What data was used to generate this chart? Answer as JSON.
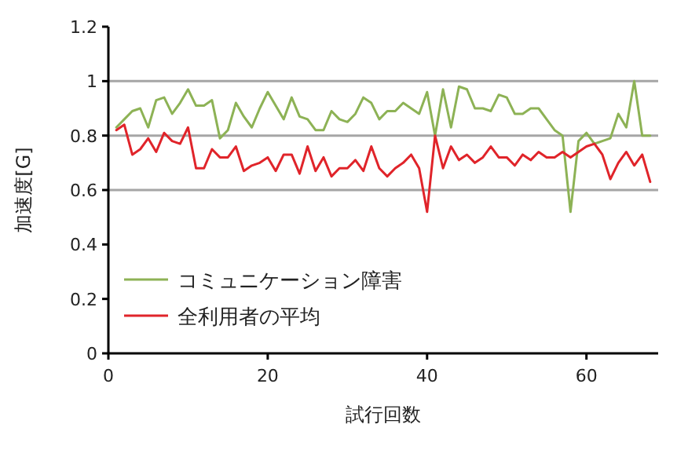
{
  "chart_data": {
    "type": "line",
    "xlabel": "試行回数",
    "ylabel": "加速度[G]",
    "x": [
      1,
      2,
      3,
      4,
      5,
      6,
      7,
      8,
      9,
      10,
      11,
      12,
      13,
      14,
      15,
      16,
      17,
      18,
      19,
      20,
      21,
      22,
      23,
      24,
      25,
      26,
      27,
      28,
      29,
      30,
      31,
      32,
      33,
      34,
      35,
      36,
      37,
      38,
      39,
      40,
      41,
      42,
      43,
      44,
      45,
      46,
      47,
      48,
      49,
      50,
      51,
      52,
      53,
      54,
      55,
      56,
      57,
      58,
      59,
      60,
      61,
      62,
      63,
      64,
      65,
      66,
      67,
      68
    ],
    "series": [
      {
        "name": "コミュニケーション障害",
        "color": "#8db255",
        "values": [
          0.83,
          0.86,
          0.89,
          0.9,
          0.83,
          0.93,
          0.94,
          0.88,
          0.92,
          0.97,
          0.91,
          0.91,
          0.93,
          0.79,
          0.82,
          0.92,
          0.87,
          0.83,
          0.9,
          0.96,
          0.91,
          0.86,
          0.94,
          0.87,
          0.86,
          0.82,
          0.82,
          0.89,
          0.86,
          0.85,
          0.88,
          0.94,
          0.92,
          0.86,
          0.89,
          0.89,
          0.92,
          0.9,
          0.88,
          0.96,
          0.8,
          0.97,
          0.83,
          0.98,
          0.97,
          0.9,
          0.9,
          0.89,
          0.95,
          0.94,
          0.88,
          0.88,
          0.9,
          0.9,
          0.86,
          0.82,
          0.8,
          0.52,
          0.78,
          0.81,
          0.77,
          0.78,
          0.79,
          0.88,
          0.83,
          1.0,
          0.8,
          0.8
        ]
      },
      {
        "name": "全利用者の平均",
        "color": "#e0242a",
        "values": [
          0.82,
          0.84,
          0.73,
          0.75,
          0.79,
          0.74,
          0.81,
          0.78,
          0.77,
          0.83,
          0.68,
          0.68,
          0.75,
          0.72,
          0.72,
          0.76,
          0.67,
          0.69,
          0.7,
          0.72,
          0.67,
          0.73,
          0.73,
          0.66,
          0.76,
          0.67,
          0.72,
          0.65,
          0.68,
          0.68,
          0.71,
          0.67,
          0.76,
          0.68,
          0.65,
          0.68,
          0.7,
          0.73,
          0.68,
          0.52,
          0.8,
          0.68,
          0.76,
          0.71,
          0.73,
          0.7,
          0.72,
          0.76,
          0.72,
          0.72,
          0.69,
          0.73,
          0.71,
          0.74,
          0.72,
          0.72,
          0.74,
          0.72,
          0.74,
          0.76,
          0.77,
          0.73,
          0.64,
          0.7,
          0.74,
          0.69,
          0.73,
          0.63
        ]
      }
    ],
    "xlim": [
      0,
      69
    ],
    "xticks": [
      0,
      20,
      40,
      60
    ],
    "ylim": [
      0,
      1.2
    ],
    "yticks": [
      0,
      0.2,
      0.4,
      0.6,
      0.8,
      1,
      1.2
    ],
    "ref_lines": [
      {
        "axis": "y",
        "value": 0.6,
        "color": "#a6a6a6"
      },
      {
        "axis": "y",
        "value": 0.8,
        "color": "#a6a6a6"
      },
      {
        "axis": "y",
        "value": 1,
        "color": "#a6a6a6"
      }
    ],
    "legend": "bottom left",
    "marker": "none",
    "line_style": "solid"
  }
}
